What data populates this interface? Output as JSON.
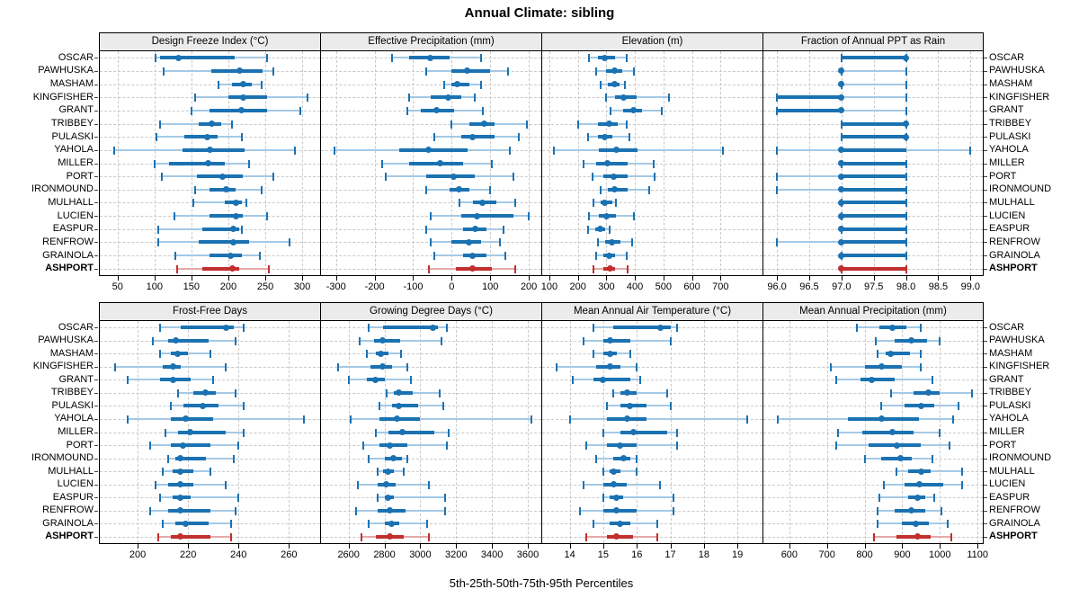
{
  "title": "Annual Climate: sibling",
  "footer_label": "5th-25th-50th-75th-95th Percentiles",
  "colors": {
    "series_blue": "#1b72b2",
    "series_blue_light": "#a5c9e5",
    "highlight_red": "#c22f2f",
    "highlight_red_light": "#e5a9a9",
    "header_bg": "#ebebeb",
    "panel_border": "#000000",
    "grid": "#c9c9c9"
  },
  "chart_data": {
    "type": "dot-whisker-trellis",
    "title": "Annual Climate: sibling",
    "xlabel": "5th-25th-50th-75th-95th Percentiles",
    "percentiles": [
      5,
      25,
      50,
      75,
      95
    ],
    "legend_position": "none",
    "grid": "dashed-both-axes",
    "stations": [
      "OSCAR",
      "PAWHUSKA",
      "MASHAM",
      "KINGFISHER",
      "GRANT",
      "TRIBBEY",
      "PULASKI",
      "YAHOLA",
      "MILLER",
      "PORT",
      "IRONMOUND",
      "MULHALL",
      "LUCIEN",
      "EASPUR",
      "RENFROW",
      "GRAINOLA",
      "ASHPORT"
    ],
    "highlight_station": "ASHPORT",
    "panels": [
      {
        "title": "Design Freeze Index (°C)",
        "domain": [
          26,
          323
        ],
        "ticks": [
          50,
          100,
          150,
          200,
          250,
          300
        ],
        "tick_labels": [
          "50",
          "100",
          "150",
          "200",
          "250",
          "300"
        ],
        "values": [
          [
            102,
            108,
            132,
            209,
            253
          ],
          [
            113,
            177,
            215,
            246,
            261
          ],
          [
            187,
            205,
            220,
            232,
            245
          ],
          [
            155,
            200,
            220,
            252,
            307
          ],
          [
            150,
            175,
            218,
            253,
            297
          ],
          [
            107,
            160,
            178,
            190,
            205
          ],
          [
            103,
            140,
            172,
            185,
            218
          ],
          [
            45,
            138,
            175,
            222,
            290
          ],
          [
            100,
            120,
            173,
            195,
            228
          ],
          [
            110,
            158,
            192,
            220,
            261
          ],
          [
            155,
            175,
            197,
            210,
            245
          ],
          [
            153,
            195,
            210,
            218,
            225
          ],
          [
            127,
            175,
            210,
            220,
            253
          ],
          [
            105,
            165,
            207,
            215,
            218
          ],
          [
            105,
            160,
            207,
            228,
            283
          ],
          [
            128,
            175,
            203,
            218,
            243
          ],
          [
            131,
            165,
            205,
            215,
            255
          ]
        ]
      },
      {
        "title": "Effective Precipitation (mm)",
        "domain": [
          -339,
          230
        ],
        "ticks": [
          -300,
          -200,
          -100,
          0,
          100,
          200
        ],
        "tick_labels": [
          "-300",
          "-200",
          "-100",
          "0",
          "100",
          "200"
        ],
        "values": [
          [
            -155,
            -110,
            -55,
            -5,
            75
          ],
          [
            -65,
            0,
            40,
            100,
            145
          ],
          [
            -20,
            0,
            15,
            45,
            75
          ],
          [
            -110,
            -55,
            -10,
            25,
            60
          ],
          [
            -115,
            -80,
            -40,
            5,
            80
          ],
          [
            0,
            45,
            85,
            110,
            195
          ],
          [
            -45,
            25,
            55,
            110,
            175
          ],
          [
            -305,
            -135,
            -60,
            40,
            150
          ],
          [
            -180,
            -110,
            -30,
            30,
            105
          ],
          [
            -170,
            -65,
            5,
            60,
            160
          ],
          [
            -65,
            -5,
            20,
            45,
            100
          ],
          [
            20,
            55,
            80,
            115,
            165
          ],
          [
            -55,
            25,
            65,
            160,
            200
          ],
          [
            -65,
            30,
            60,
            90,
            135
          ],
          [
            -55,
            0,
            45,
            75,
            125
          ],
          [
            -45,
            30,
            55,
            90,
            140
          ],
          [
            -60,
            10,
            55,
            105,
            165
          ]
        ]
      },
      {
        "title": "Elevation (m)",
        "domain": [
          75,
          844
        ],
        "ticks": [
          100,
          200,
          300,
          400,
          500,
          600,
          700
        ],
        "tick_labels": [
          "100",
          "200",
          "300",
          "400",
          "500",
          "600",
          "700"
        ],
        "values": [
          [
            240,
            270,
            295,
            330,
            370
          ],
          [
            265,
            300,
            330,
            355,
            395
          ],
          [
            280,
            305,
            330,
            345,
            365
          ],
          [
            300,
            330,
            360,
            405,
            520
          ],
          [
            315,
            360,
            395,
            425,
            495
          ],
          [
            200,
            270,
            310,
            340,
            370
          ],
          [
            235,
            270,
            295,
            320,
            380
          ],
          [
            115,
            275,
            335,
            410,
            710
          ],
          [
            220,
            265,
            305,
            375,
            465
          ],
          [
            250,
            290,
            325,
            375,
            470
          ],
          [
            280,
            305,
            330,
            375,
            450
          ],
          [
            255,
            280,
            295,
            320,
            335
          ],
          [
            240,
            275,
            300,
            335,
            395
          ],
          [
            235,
            260,
            278,
            295,
            310
          ],
          [
            270,
            295,
            318,
            350,
            390
          ],
          [
            265,
            290,
            310,
            330,
            370
          ],
          [
            255,
            290,
            312,
            330,
            375
          ]
        ]
      },
      {
        "title": "Fraction of Annual PPT as Rain",
        "domain": [
          95.79,
          99.19
        ],
        "ticks": [
          96.0,
          96.5,
          97.0,
          97.5,
          98.0,
          98.5,
          99.0
        ],
        "tick_labels": [
          "96.0",
          "96.5",
          "97.0",
          "97.5",
          "98.0",
          "98.5",
          "99.0"
        ],
        "values": [
          [
            97,
            97,
            98,
            98,
            98
          ],
          [
            97,
            97,
            97,
            97,
            98
          ],
          [
            97,
            97,
            97,
            97,
            98
          ],
          [
            96,
            96,
            97,
            97,
            98
          ],
          [
            96,
            96,
            97,
            97,
            98
          ],
          [
            97,
            97,
            98,
            98,
            98
          ],
          [
            97,
            97,
            98,
            98,
            98
          ],
          [
            96,
            97,
            97,
            98,
            99
          ],
          [
            97,
            97,
            97,
            98,
            98
          ],
          [
            96,
            97,
            97,
            98,
            98
          ],
          [
            96,
            97,
            97,
            98,
            98
          ],
          [
            97,
            97,
            97,
            98,
            98
          ],
          [
            97,
            97,
            97,
            98,
            98
          ],
          [
            97,
            97,
            97,
            98,
            98
          ],
          [
            96,
            97,
            97,
            98,
            98
          ],
          [
            97,
            97,
            97,
            98,
            98
          ],
          [
            97,
            97,
            97,
            98,
            98
          ]
        ]
      },
      {
        "title": "Frost-Free Days",
        "domain": [
          185,
          272
        ],
        "ticks": [
          200,
          220,
          240,
          260
        ],
        "tick_labels": [
          "200",
          "220",
          "240",
          "260"
        ],
        "values": [
          [
            209,
            217,
            235,
            238,
            242
          ],
          [
            206,
            212,
            215,
            228,
            239
          ],
          [
            209,
            213,
            216,
            220,
            229
          ],
          [
            191,
            210,
            214,
            217,
            235
          ],
          [
            196,
            209,
            214,
            221,
            230
          ],
          [
            216,
            222,
            227,
            231,
            239
          ],
          [
            213,
            218,
            226,
            232,
            242
          ],
          [
            196,
            213,
            219,
            230,
            266
          ],
          [
            211,
            216,
            221,
            235,
            242
          ],
          [
            205,
            213,
            218,
            229,
            240
          ],
          [
            212,
            215,
            217,
            227,
            238
          ],
          [
            210,
            214,
            217,
            222,
            229
          ],
          [
            207,
            212,
            217,
            222,
            235
          ],
          [
            209,
            214,
            217,
            221,
            240
          ],
          [
            205,
            212,
            217,
            229,
            239
          ],
          [
            210,
            215,
            219,
            228,
            237
          ],
          [
            208,
            213,
            217,
            229,
            237
          ]
        ]
      },
      {
        "title": "Growing Degree Days (°C)",
        "domain": [
          2446,
          3670
        ],
        "ticks": [
          2600,
          2800,
          3000,
          3200,
          3400,
          3600
        ],
        "tick_labels": [
          "2600",
          "2800",
          "3000",
          "3200",
          "3400",
          "3600"
        ],
        "values": [
          [
            2710,
            2790,
            3070,
            3100,
            3150
          ],
          [
            2660,
            2740,
            2790,
            2890,
            3120
          ],
          [
            2700,
            2750,
            2780,
            2820,
            2890
          ],
          [
            2540,
            2720,
            2790,
            2840,
            2930
          ],
          [
            2600,
            2700,
            2750,
            2800,
            2950
          ],
          [
            2810,
            2850,
            2880,
            2960,
            3110
          ],
          [
            2770,
            2840,
            2880,
            2990,
            3130
          ],
          [
            2610,
            2770,
            2870,
            3000,
            3620
          ],
          [
            2750,
            2820,
            2900,
            3080,
            3160
          ],
          [
            2680,
            2770,
            2830,
            2930,
            3150
          ],
          [
            2710,
            2800,
            2850,
            2900,
            2930
          ],
          [
            2760,
            2790,
            2820,
            2850,
            2910
          ],
          [
            2650,
            2760,
            2810,
            2860,
            3050
          ],
          [
            2760,
            2800,
            2820,
            2850,
            3140
          ],
          [
            2640,
            2760,
            2830,
            2920,
            3140
          ],
          [
            2710,
            2800,
            2840,
            2880,
            3040
          ],
          [
            2670,
            2750,
            2830,
            2910,
            3050
          ]
        ]
      },
      {
        "title": "Mean Annual Air Temperature (°C)",
        "domain": [
          13.18,
          19.72
        ],
        "ticks": [
          14,
          15,
          16,
          17,
          18,
          19
        ],
        "tick_labels": [
          "14",
          "15",
          "16",
          "17",
          "18",
          "19"
        ],
        "values": [
          [
            14.7,
            15.3,
            16.7,
            17.0,
            17.2
          ],
          [
            14.4,
            15.0,
            15.2,
            15.8,
            17.0
          ],
          [
            14.7,
            15.0,
            15.2,
            15.4,
            15.8
          ],
          [
            13.6,
            14.8,
            15.2,
            15.5,
            16.0
          ],
          [
            14.1,
            14.7,
            15.0,
            15.8,
            16.1
          ],
          [
            15.3,
            15.5,
            15.7,
            16.0,
            16.9
          ],
          [
            15.1,
            15.5,
            15.8,
            16.3,
            17.0
          ],
          [
            14.0,
            15.1,
            15.7,
            16.3,
            19.3
          ],
          [
            15.0,
            15.5,
            15.9,
            16.9,
            17.2
          ],
          [
            14.5,
            15.1,
            15.5,
            16.0,
            17.2
          ],
          [
            14.8,
            15.3,
            15.6,
            15.8,
            16.0
          ],
          [
            15.0,
            15.2,
            15.3,
            15.5,
            16.0
          ],
          [
            14.4,
            15.0,
            15.3,
            15.7,
            16.7
          ],
          [
            15.0,
            15.2,
            15.4,
            15.6,
            17.1
          ],
          [
            14.3,
            15.0,
            15.4,
            16.0,
            17.1
          ],
          [
            14.7,
            15.2,
            15.5,
            15.8,
            16.6
          ],
          [
            14.5,
            15.1,
            15.4,
            15.9,
            16.6
          ]
        ]
      },
      {
        "title": "Mean Annual Precipitation (mm)",
        "domain": [
          531,
          1114
        ],
        "ticks": [
          600,
          700,
          800,
          900,
          1000,
          1100
        ],
        "tick_labels": [
          "600",
          "700",
          "800",
          "900",
          "1000",
          "1100"
        ],
        "values": [
          [
            780,
            840,
            875,
            910,
            950
          ],
          [
            830,
            880,
            925,
            965,
            1000
          ],
          [
            835,
            855,
            870,
            920,
            950
          ],
          [
            710,
            800,
            845,
            900,
            950
          ],
          [
            725,
            790,
            820,
            880,
            980
          ],
          [
            870,
            930,
            970,
            1000,
            1085
          ],
          [
            845,
            905,
            950,
            985,
            1050
          ],
          [
            570,
            755,
            845,
            945,
            1035
          ],
          [
            730,
            795,
            875,
            930,
            1000
          ],
          [
            725,
            810,
            885,
            950,
            1025
          ],
          [
            800,
            845,
            895,
            925,
            980
          ],
          [
            885,
            915,
            950,
            975,
            1060
          ],
          [
            850,
            905,
            945,
            1010,
            1060
          ],
          [
            840,
            915,
            940,
            960,
            985
          ],
          [
            835,
            880,
            925,
            960,
            1005
          ],
          [
            835,
            900,
            935,
            970,
            1020
          ],
          [
            825,
            885,
            940,
            975,
            1030
          ]
        ]
      }
    ]
  }
}
